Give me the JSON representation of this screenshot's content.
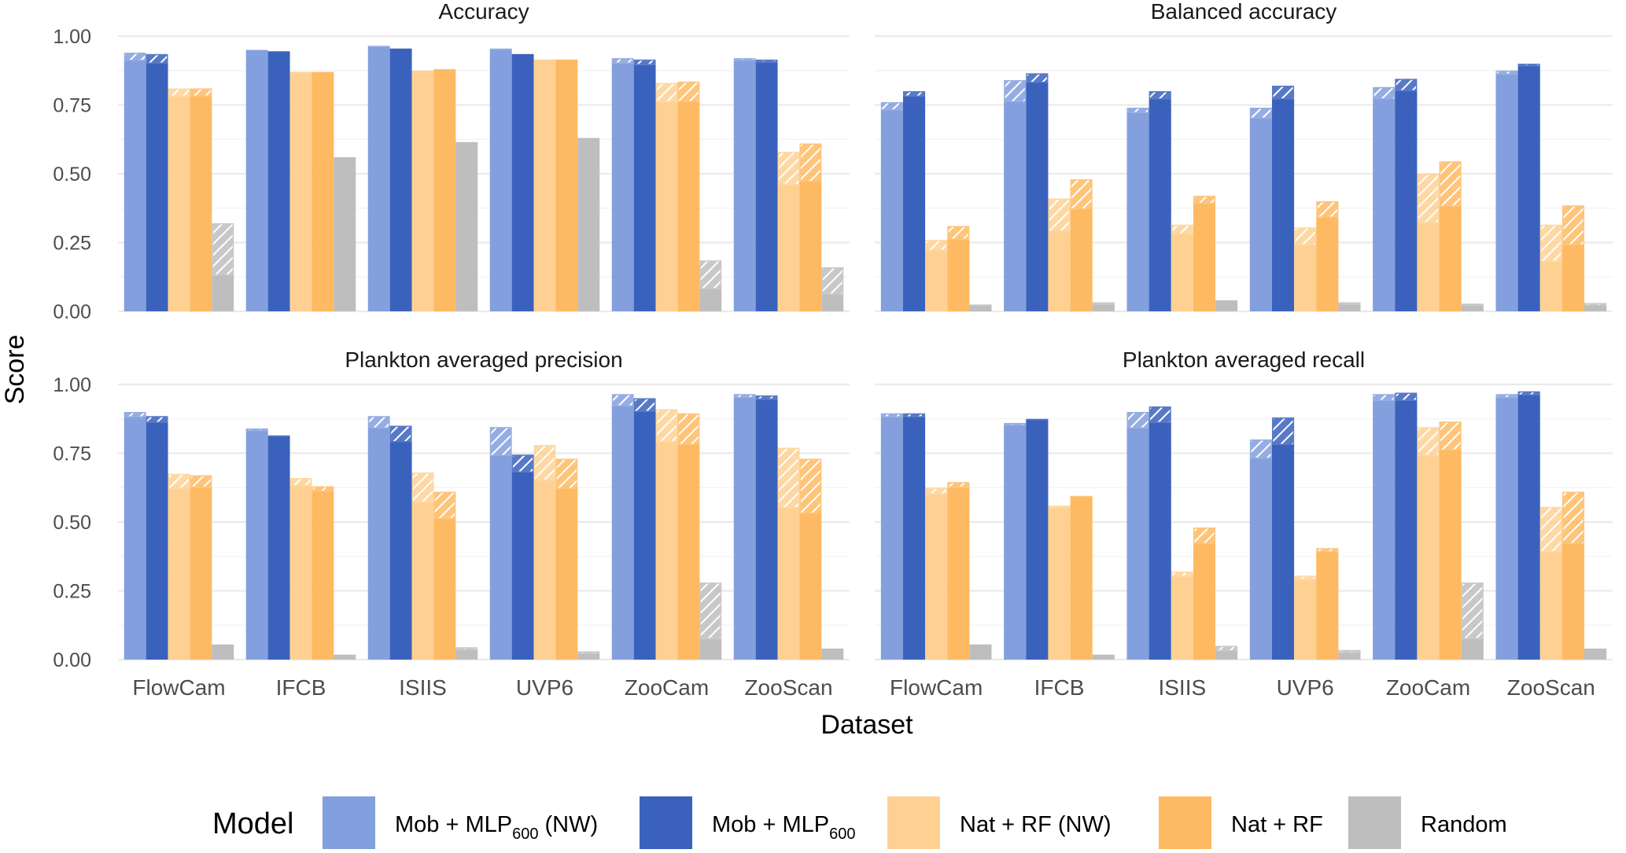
{
  "chart_data": {
    "type": "bar",
    "layout": "facet-grid 2x2",
    "xlabel": "Dataset",
    "ylabel": "Score",
    "ylim": [
      0,
      1
    ],
    "yticks": [
      "0.00",
      "0.25",
      "0.50",
      "0.75",
      "1.00"
    ],
    "grid": true,
    "categories": [
      "FlowCam",
      "IFCB",
      "ISIIS",
      "UVP6",
      "ZooCam",
      "ZooScan"
    ],
    "legend": {
      "title": "Model",
      "position": "bottom",
      "entries": [
        {
          "key": "mob_nw",
          "label_main": "Mob + MLP",
          "label_sub": "600",
          "label_suffix": " (NW)",
          "color": "#839FDD"
        },
        {
          "key": "mob",
          "label_main": "Mob + MLP",
          "label_sub": "600",
          "label_suffix": "",
          "color": "#3A62BD"
        },
        {
          "key": "nat_nw",
          "label_main": "Nat + RF (NW)",
          "label_sub": "",
          "label_suffix": "",
          "color": "#FED193"
        },
        {
          "key": "nat",
          "label_main": "Nat + RF",
          "label_sub": "",
          "label_suffix": "",
          "color": "#FEBA62"
        },
        {
          "key": "random",
          "label_main": "Random",
          "label_sub": "",
          "label_suffix": "",
          "color": "#BEBEBE"
        }
      ]
    },
    "note": "Each bar: solid part up to 'low', hatched part from 'low' to 'high'",
    "panels": [
      {
        "title": "Accuracy",
        "series": [
          {
            "name": "mob_nw",
            "low": [
              0.91,
              0.95,
              0.96,
              0.95,
              0.9,
              0.91
            ],
            "high": [
              0.94,
              0.95,
              0.965,
              0.955,
              0.92,
              0.92
            ]
          },
          {
            "name": "mob",
            "low": [
              0.9,
              0.945,
              0.955,
              0.935,
              0.895,
              0.905
            ],
            "high": [
              0.935,
              0.945,
              0.955,
              0.935,
              0.915,
              0.915
            ]
          },
          {
            "name": "nat_nw",
            "low": [
              0.78,
              0.87,
              0.875,
              0.915,
              0.76,
              0.46
            ],
            "high": [
              0.81,
              0.87,
              0.875,
              0.915,
              0.83,
              0.58
            ]
          },
          {
            "name": "nat",
            "low": [
              0.78,
              0.87,
              0.88,
              0.915,
              0.76,
              0.47
            ],
            "high": [
              0.81,
              0.87,
              0.88,
              0.915,
              0.835,
              0.61
            ]
          },
          {
            "name": "random",
            "low": [
              0.13,
              0.56,
              0.615,
              0.63,
              0.08,
              0.06
            ],
            "high": [
              0.32,
              0.56,
              0.615,
              0.63,
              0.185,
              0.16
            ]
          }
        ]
      },
      {
        "title": "Balanced accuracy",
        "series": [
          {
            "name": "mob_nw",
            "low": [
              0.73,
              0.76,
              0.72,
              0.7,
              0.77,
              0.86
            ],
            "high": [
              0.76,
              0.84,
              0.74,
              0.74,
              0.815,
              0.875
            ]
          },
          {
            "name": "mob",
            "low": [
              0.78,
              0.83,
              0.77,
              0.77,
              0.8,
              0.89
            ],
            "high": [
              0.8,
              0.865,
              0.8,
              0.82,
              0.845,
              0.9
            ]
          },
          {
            "name": "nat_nw",
            "low": [
              0.22,
              0.29,
              0.28,
              0.24,
              0.32,
              0.18
            ],
            "high": [
              0.26,
              0.41,
              0.315,
              0.305,
              0.5,
              0.315
            ]
          },
          {
            "name": "nat",
            "low": [
              0.26,
              0.37,
              0.39,
              0.34,
              0.38,
              0.24
            ],
            "high": [
              0.31,
              0.48,
              0.42,
              0.4,
              0.545,
              0.385
            ]
          },
          {
            "name": "random",
            "low": [
              0.02,
              0.025,
              0.04,
              0.025,
              0.02,
              0.02
            ],
            "high": [
              0.025,
              0.033,
              0.04,
              0.033,
              0.028,
              0.03
            ]
          }
        ]
      },
      {
        "title": "Plankton averaged precision",
        "series": [
          {
            "name": "mob_nw",
            "low": [
              0.88,
              0.83,
              0.84,
              0.74,
              0.92,
              0.95
            ],
            "high": [
              0.9,
              0.84,
              0.885,
              0.845,
              0.965,
              0.965
            ]
          },
          {
            "name": "mob",
            "low": [
              0.86,
              0.81,
              0.79,
              0.68,
              0.9,
              0.945
            ],
            "high": [
              0.885,
              0.815,
              0.85,
              0.745,
              0.95,
              0.96
            ]
          },
          {
            "name": "nat_nw",
            "low": [
              0.62,
              0.63,
              0.57,
              0.65,
              0.79,
              0.55
            ],
            "high": [
              0.675,
              0.66,
              0.68,
              0.78,
              0.91,
              0.77
            ]
          },
          {
            "name": "nat",
            "low": [
              0.625,
              0.61,
              0.51,
              0.62,
              0.78,
              0.53
            ],
            "high": [
              0.67,
              0.63,
              0.61,
              0.73,
              0.895,
              0.73
            ]
          },
          {
            "name": "random",
            "low": [
              0.055,
              0.018,
              0.035,
              0.02,
              0.075,
              0.04
            ],
            "high": [
              0.055,
              0.018,
              0.045,
              0.03,
              0.28,
              0.04
            ]
          }
        ]
      },
      {
        "title": "Plankton averaged recall",
        "series": [
          {
            "name": "mob_nw",
            "low": [
              0.88,
              0.85,
              0.84,
              0.73,
              0.94,
              0.95
            ],
            "high": [
              0.895,
              0.86,
              0.9,
              0.8,
              0.965,
              0.965
            ]
          },
          {
            "name": "mob",
            "low": [
              0.88,
              0.87,
              0.86,
              0.78,
              0.94,
              0.96
            ],
            "high": [
              0.895,
              0.875,
              0.92,
              0.88,
              0.97,
              0.975
            ]
          },
          {
            "name": "nat_nw",
            "low": [
              0.6,
              0.55,
              0.3,
              0.29,
              0.74,
              0.39
            ],
            "high": [
              0.625,
              0.56,
              0.32,
              0.305,
              0.845,
              0.555
            ]
          },
          {
            "name": "nat",
            "low": [
              0.625,
              0.59,
              0.42,
              0.39,
              0.76,
              0.42
            ],
            "high": [
              0.645,
              0.595,
              0.48,
              0.405,
              0.865,
              0.61
            ]
          },
          {
            "name": "random",
            "low": [
              0.055,
              0.018,
              0.03,
              0.025,
              0.075,
              0.04
            ],
            "high": [
              0.055,
              0.018,
              0.05,
              0.035,
              0.28,
              0.04
            ]
          }
        ]
      }
    ]
  }
}
